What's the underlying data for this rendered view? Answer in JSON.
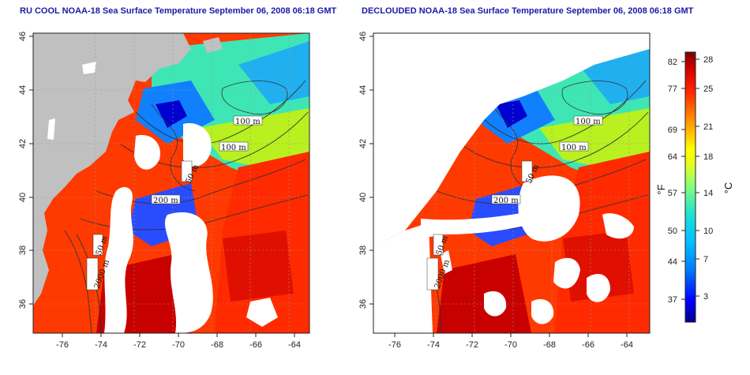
{
  "panels": [
    {
      "title": "RU COOL NOAA-18 Sea Surface Temperature September 06, 2008 06:18 GMT",
      "cloud_masked": false
    },
    {
      "title": "DECLOUDED NOAA-18 Sea Surface Temperature September 06, 2008 06:18 GMT",
      "cloud_masked": true
    }
  ],
  "map": {
    "lon_ticks": [
      "-76",
      "-74",
      "-72",
      "-70",
      "-68",
      "-66",
      "-64"
    ],
    "lat_ticks": [
      "36",
      "38",
      "40",
      "42",
      "44",
      "46"
    ],
    "contour_labels": [
      "100 m",
      "100 m",
      "50 m",
      "200 m",
      "50 m",
      "2000 m"
    ],
    "land_color": "#c0c0c0",
    "cloud_color": "#ffffff"
  },
  "colorbar": {
    "fahrenheit_label": "°F",
    "celsius_label": "°C",
    "fahrenheit_ticks": [
      "82",
      "77",
      "69",
      "64",
      "57",
      "50",
      "44",
      "37"
    ],
    "celsius_ticks": [
      "28",
      "25",
      "21",
      "18",
      "14",
      "10",
      "7",
      "3"
    ],
    "colors": [
      "#00008b",
      "#0000ff",
      "#0080ff",
      "#00c0ff",
      "#20e0d0",
      "#80ff80",
      "#e0ff20",
      "#ffff00",
      "#ffc000",
      "#ff7000",
      "#ff2000",
      "#d00000",
      "#7a0000"
    ]
  }
}
